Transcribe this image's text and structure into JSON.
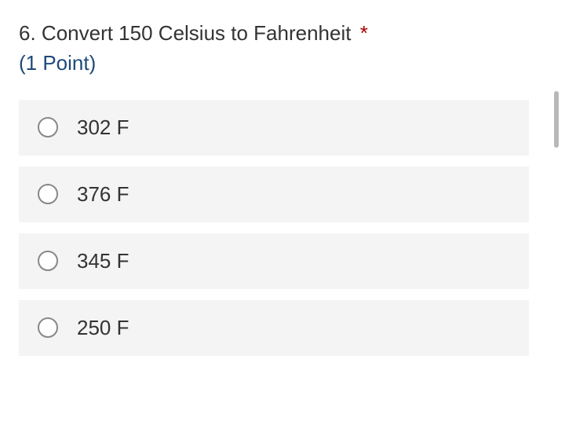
{
  "question": {
    "number": "6.",
    "text": "Convert 150 Celsius to Fahrenheit",
    "required_mark": "*",
    "points_label": "(1 Point)"
  },
  "options": [
    {
      "label": "302 F",
      "selected": false
    },
    {
      "label": "376 F",
      "selected": false
    },
    {
      "label": "345 F",
      "selected": false
    },
    {
      "label": "250 F",
      "selected": false
    }
  ],
  "colors": {
    "text_primary": "#333333",
    "points_color": "#1e4a7a",
    "required_color": "#a80000",
    "option_bg": "#f4f4f4",
    "radio_border": "#888888",
    "scrollbar": "#b8b8b8",
    "background": "#ffffff"
  },
  "typography": {
    "question_fontsize": 26,
    "option_fontsize": 26
  }
}
